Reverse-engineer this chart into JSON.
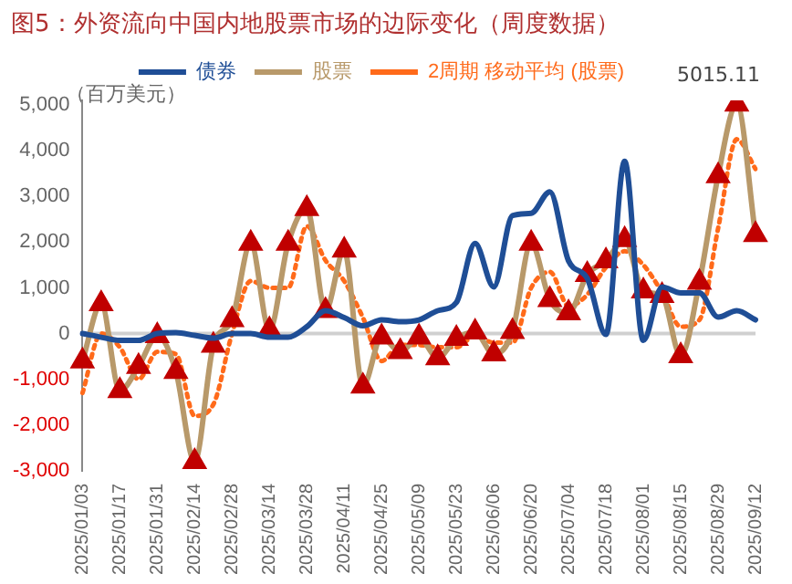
{
  "chart_data": {
    "type": "line",
    "title": "图5：外资流向中国内地股票市场的边际变化（周度数据）",
    "ylabel": "（百万美元）",
    "categories": [
      "2025/01/03",
      null,
      "2025/01/17",
      null,
      "2025/01/31",
      null,
      "2025/02/14",
      null,
      "2025/02/28",
      null,
      "2025/03/14",
      null,
      "2025/03/28",
      null,
      "2025/04/11",
      null,
      "2025/04/25",
      null,
      "2025/05/09",
      null,
      "2025/05/23",
      null,
      "2025/06/06",
      null,
      "2025/06/20",
      null,
      "2025/07/04",
      null,
      "2025/07/18",
      null,
      "2025/08/01",
      null,
      "2025/08/15",
      null,
      "2025/08/29",
      null,
      "2025/09/12"
    ],
    "series": [
      {
        "name": "债券",
        "color": "#1f4e96",
        "marker": "none",
        "line_style": "solid",
        "values": [
          0,
          -80,
          -150,
          -150,
          0,
          20,
          -40,
          -100,
          0,
          0,
          -80,
          -80,
          150,
          500,
          350,
          170,
          300,
          260,
          300,
          500,
          680,
          1970,
          1020,
          2580,
          2630,
          3100,
          1590,
          1210,
          -20,
          3770,
          -150,
          1020,
          890,
          890,
          360,
          500,
          300
        ]
      },
      {
        "name": "股票",
        "color": "#b8996a",
        "colors": [
          "#c00000",
          "#c00000",
          "#c00000",
          "#c00000",
          "#c00000",
          "#c00000",
          "#c00000",
          "#c00000",
          "#c00000",
          "#c00000",
          "#c00000",
          "#c00000",
          "#c00000",
          "#c00000",
          "#c00000",
          "#c00000",
          "#c00000",
          "#c00000",
          "#c00000",
          "#c00000",
          "#c00000",
          "#c00000",
          "#c00000",
          "#c00000",
          "#c00000",
          "#c00000",
          "#c00000",
          "#c00000",
          "#c00000",
          "#c00000",
          "#c00000",
          "#c00000",
          "#c00000",
          "#c00000",
          "#c00000",
          "#c00000",
          "#c00000"
        ],
        "marker": "triangle",
        "line_style": "solid",
        "values": [
          -600,
          650,
          -1250,
          -720,
          -50,
          -830,
          -2800,
          -260,
          300,
          1970,
          80,
          1970,
          2730,
          500,
          1820,
          -1150,
          -80,
          -400,
          -80,
          -530,
          -110,
          30,
          -450,
          40,
          1970,
          740,
          450,
          1290,
          1590,
          2050,
          930,
          830,
          -490,
          1120,
          3450,
          5015.11,
          2160
        ],
        "value_labels": [
          null,
          null,
          null,
          null,
          null,
          null,
          null,
          null,
          null,
          null,
          null,
          null,
          null,
          null,
          null,
          null,
          null,
          null,
          null,
          null,
          null,
          null,
          null,
          null,
          null,
          null,
          null,
          null,
          null,
          null,
          null,
          null,
          null,
          null,
          null,
          "5015.11",
          null
        ]
      },
      {
        "name": "2周期 移动平均 (股票)",
        "color": "#ff6a1a",
        "marker": "none",
        "line_style": "dotted",
        "values": [
          -1300,
          0,
          -300,
          -1000,
          -400,
          -450,
          -1800,
          -1550,
          0,
          1150,
          1000,
          1000,
          2350,
          1600,
          1150,
          350,
          -600,
          -250,
          -250,
          -300,
          -300,
          -50,
          -200,
          -200,
          1000,
          1350,
          600,
          850,
          1450,
          1800,
          1500,
          900,
          150,
          300,
          2300,
          4250,
          3600
        ]
      }
    ],
    "ylim": [
      -3000,
      5100
    ],
    "yticks": [
      {
        "value": -3000,
        "label": "-3,000"
      },
      {
        "value": -2000,
        "label": "-2,000"
      },
      {
        "value": -1000,
        "label": "-1,000"
      },
      0,
      {
        "value": 1000,
        "label": "1,000"
      },
      {
        "value": 2000,
        "label": "2,000"
      },
      {
        "value": 3000,
        "label": "3,000"
      },
      {
        "value": 4000,
        "label": "4,000"
      },
      {
        "value": 5000,
        "label": "5,000"
      }
    ],
    "grid": false,
    "legend": "top",
    "ref_lines": [
      {
        "axis": "y",
        "value": 0,
        "color": "#d0d0d0"
      }
    ]
  }
}
